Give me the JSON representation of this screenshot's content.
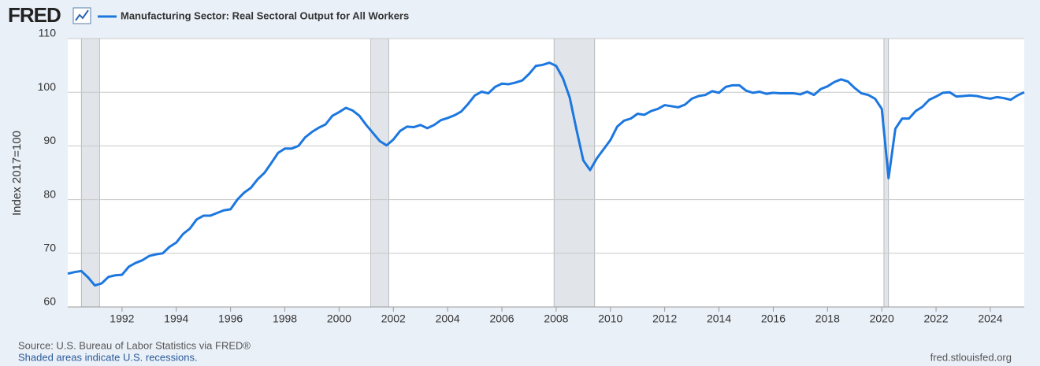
{
  "chart_data": {
    "type": "line",
    "brand": "FRED",
    "title": "Manufacturing Sector: Real Sectoral Output for All Workers",
    "y_label": "Index 2017=100",
    "source": "Source: U.S. Bureau of Labor Statistics via FRED®",
    "note": "Shaded areas indicate U.S. recessions.",
    "url": "fred.stlouisfed.org",
    "xlim": [
      1990,
      2025.25
    ],
    "ylim": [
      60,
      110
    ],
    "xticks": [
      1992,
      1994,
      1996,
      1998,
      2000,
      2002,
      2004,
      2006,
      2008,
      2010,
      2012,
      2014,
      2016,
      2018,
      2020,
      2022,
      2024
    ],
    "yticks": [
      60,
      70,
      80,
      90,
      100,
      110
    ],
    "grid": true,
    "recessions": [
      [
        1990.5,
        1991.17
      ],
      [
        2001.17,
        2001.83
      ],
      [
        2007.92,
        2009.42
      ],
      [
        2020.08,
        2020.25
      ]
    ],
    "recession_color": "#e1e5ea",
    "x": [
      1990,
      1990.25,
      1990.5,
      1990.75,
      1991,
      1991.25,
      1991.5,
      1991.75,
      1992,
      1992.25,
      1992.5,
      1992.75,
      1993,
      1993.25,
      1993.5,
      1993.75,
      1994,
      1994.25,
      1994.5,
      1994.75,
      1995,
      1995.25,
      1995.5,
      1995.75,
      1996,
      1996.25,
      1996.5,
      1996.75,
      1997,
      1997.25,
      1997.5,
      1997.75,
      1998,
      1998.25,
      1998.5,
      1998.75,
      1999,
      1999.25,
      1999.5,
      1999.75,
      2000,
      2000.25,
      2000.5,
      2000.75,
      2001,
      2001.25,
      2001.5,
      2001.75,
      2002,
      2002.25,
      2002.5,
      2002.75,
      2003,
      2003.25,
      2003.5,
      2003.75,
      2004,
      2004.25,
      2004.5,
      2004.75,
      2005,
      2005.25,
      2005.5,
      2005.75,
      2006,
      2006.25,
      2006.5,
      2006.75,
      2007,
      2007.25,
      2007.5,
      2007.75,
      2008,
      2008.25,
      2008.5,
      2008.75,
      2009,
      2009.25,
      2009.5,
      2009.75,
      2010,
      2010.25,
      2010.5,
      2010.75,
      2011,
      2011.25,
      2011.5,
      2011.75,
      2012,
      2012.25,
      2012.5,
      2012.75,
      2013,
      2013.25,
      2013.5,
      2013.75,
      2014,
      2014.25,
      2014.5,
      2014.75,
      2015,
      2015.25,
      2015.5,
      2015.75,
      2016,
      2016.25,
      2016.5,
      2016.75,
      2017,
      2017.25,
      2017.5,
      2017.75,
      2018,
      2018.25,
      2018.5,
      2018.75,
      2019,
      2019.25,
      2019.5,
      2019.75,
      2020,
      2020.25,
      2020.5,
      2020.75,
      2021,
      2021.25,
      2021.5,
      2021.75,
      2022,
      2022.25,
      2022.5,
      2022.75,
      2023,
      2023.25,
      2023.5,
      2023.75,
      2024,
      2024.25,
      2024.5,
      2024.75,
      2025,
      2025.25
    ],
    "series": [
      {
        "name": "Manufacturing Sector: Real Sectoral Output for All Workers",
        "color": "#1c77df",
        "values": [
          66.2,
          66.5,
          66.7,
          65.5,
          64.0,
          64.4,
          65.6,
          65.9,
          66.0,
          67.5,
          68.2,
          68.7,
          69.5,
          69.8,
          70.0,
          71.2,
          72.0,
          73.6,
          74.6,
          76.3,
          77.0,
          77.0,
          77.5,
          78.0,
          78.2,
          80.0,
          81.3,
          82.2,
          83.8,
          85.0,
          86.8,
          88.7,
          89.5,
          89.5,
          90.0,
          91.6,
          92.6,
          93.4,
          94.0,
          95.6,
          96.3,
          97.1,
          96.6,
          95.6,
          93.9,
          92.4,
          90.9,
          90.1,
          91.2,
          92.8,
          93.6,
          93.5,
          93.9,
          93.3,
          93.9,
          94.8,
          95.2,
          95.7,
          96.4,
          97.8,
          99.4,
          100.1,
          99.8,
          101.0,
          101.6,
          101.5,
          101.8,
          102.2,
          103.4,
          104.9,
          105.1,
          105.5,
          104.9,
          102.6,
          99.0,
          93.0,
          87.3,
          85.5,
          87.7,
          89.4,
          91.1,
          93.6,
          94.7,
          95.1,
          96.0,
          95.8,
          96.5,
          96.9,
          97.6,
          97.4,
          97.2,
          97.7,
          98.8,
          99.3,
          99.5,
          100.2,
          99.9,
          101.0,
          101.3,
          101.3,
          100.3,
          99.9,
          100.1,
          99.7,
          99.9,
          99.8,
          99.8,
          99.8,
          99.6,
          100.1,
          99.5,
          100.6,
          101.1,
          101.9,
          102.4,
          102.0,
          100.8,
          99.8,
          99.5,
          98.8,
          96.9,
          84.0,
          93.2,
          95.1,
          95.1,
          96.5,
          97.3,
          98.6,
          99.2,
          99.9,
          100.0,
          99.2,
          99.3,
          99.4,
          99.3,
          99.0,
          98.8,
          99.1,
          98.9,
          98.6,
          99.4,
          100.0
        ]
      }
    ]
  }
}
